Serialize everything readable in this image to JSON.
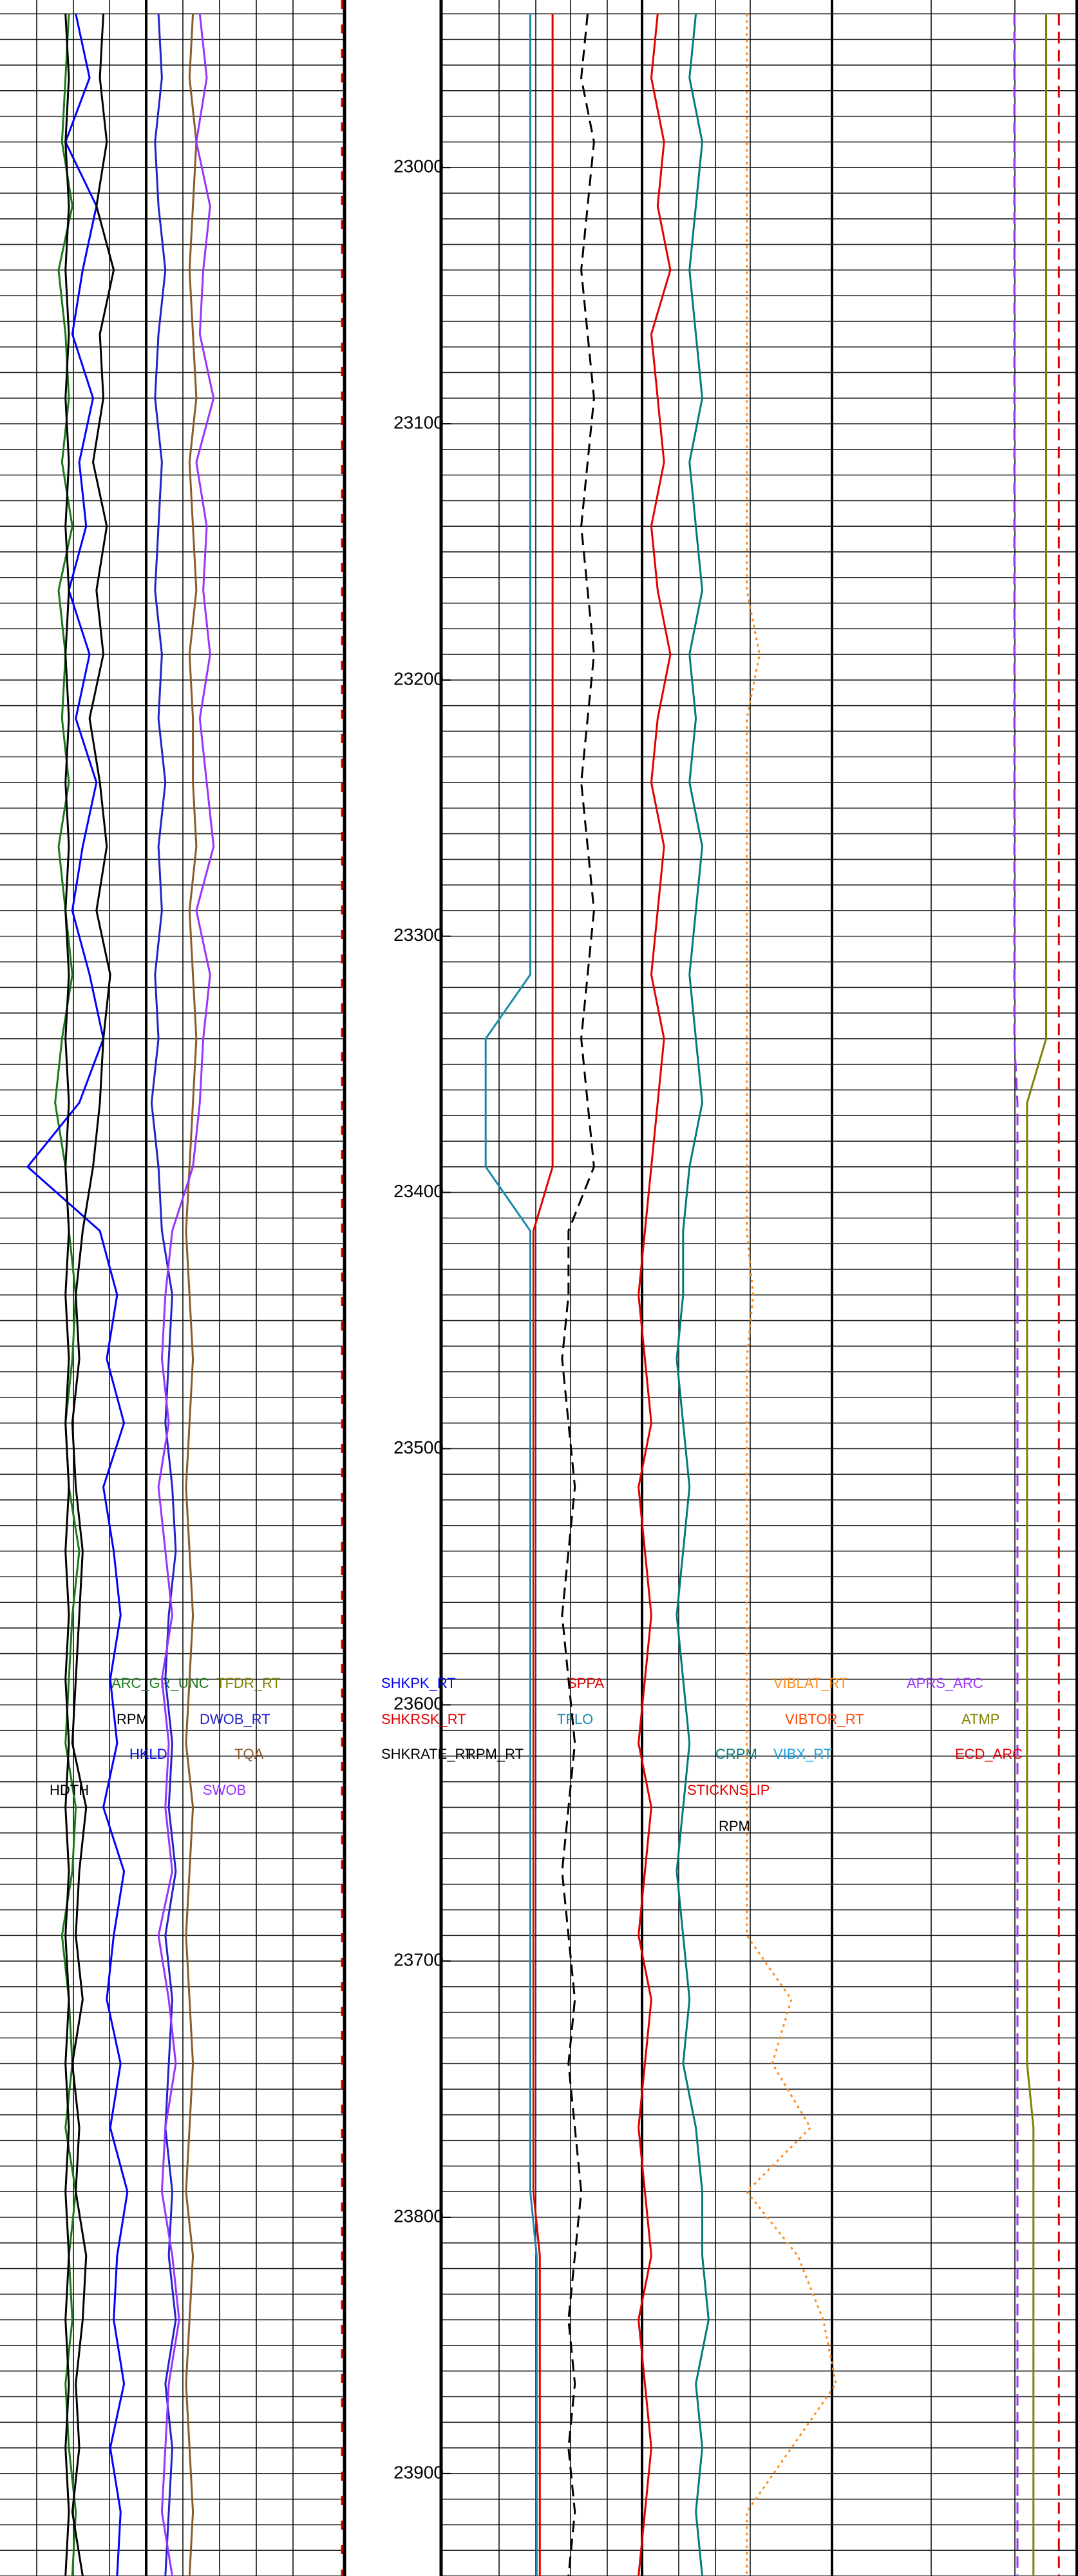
{
  "chart_data": {
    "type": "well-log",
    "ylim": [
      22934.6,
      23940
    ],
    "yticks": [
      23000,
      23100,
      23200,
      23300,
      23400,
      23500,
      23600,
      23700,
      23800,
      23900
    ],
    "minor_grid_step": 10,
    "x": [
      22940,
      22965,
      22990,
      23015,
      23040,
      23065,
      23090,
      23115,
      23140,
      23165,
      23190,
      23215,
      23240,
      23265,
      23290,
      23315,
      23340,
      23365,
      23390,
      23415,
      23440,
      23465,
      23490,
      23515,
      23540,
      23565,
      23590,
      23615,
      23640,
      23665,
      23690,
      23715,
      23740,
      23765,
      23790,
      23815,
      23840,
      23865,
      23890,
      23915,
      23940
    ],
    "tracks": [
      {
        "xlim": [
          0,
          100
        ],
        "series": [
          {
            "name": "ARC_GR_UNC",
            "color": "#1a7a1a",
            "values": [
              20,
              19,
              18,
              21,
              17,
              19,
              20,
              18,
              21,
              17,
              19,
              18,
              20,
              17,
              19,
              21,
              18,
              16,
              19,
              20,
              22,
              21,
              19,
              20,
              23,
              21,
              20,
              19,
              22,
              21,
              18,
              20,
              21,
              19,
              22,
              20,
              21,
              19,
              20,
              22,
              21
            ]
          },
          {
            "name": "HKLD",
            "color": "#0000ff",
            "values": [
              22,
              26,
              19,
              28,
              24,
              21,
              27,
              23,
              25,
              20,
              26,
              22,
              28,
              24,
              21,
              26,
              30,
              23,
              8,
              29,
              34,
              31,
              36,
              30,
              33,
              35,
              32,
              34,
              30,
              36,
              33,
              31,
              35,
              32,
              37,
              34,
              33,
              36,
              32,
              35,
              34
            ]
          },
          {
            "name": "RPM",
            "color": "#000000",
            "values": [
              30,
              29,
              31,
              28,
              33,
              29,
              30,
              27,
              31,
              28,
              30,
              26,
              29,
              31,
              28,
              32,
              30,
              29,
              27,
              24,
              22,
              23,
              21,
              22,
              24,
              23,
              22,
              21,
              25,
              23,
              22,
              24,
              21,
              23,
              22,
              25,
              24,
              22,
              23,
              21,
              24
            ]
          },
          {
            "name": "HDTH",
            "color": "#000000",
            "values": [
              19,
              20,
              19,
              20,
              19,
              20,
              19,
              20,
              19,
              20,
              19,
              20,
              19,
              20,
              19,
              20,
              19,
              20,
              19,
              20,
              19,
              20,
              19,
              20,
              19,
              20,
              19,
              20,
              19,
              20,
              19,
              20,
              19,
              20,
              19,
              20,
              19,
              20,
              19,
              20,
              19
            ]
          },
          {
            "name": "DWOB_RT",
            "color": "#2222cc",
            "values": [
              46,
              47,
              45,
              46,
              48,
              46,
              45,
              47,
              46,
              45,
              47,
              46,
              48,
              46,
              47,
              45,
              46,
              44,
              46,
              47,
              50,
              49,
              48,
              50,
              51,
              49,
              48,
              50,
              49,
              51,
              48,
              50,
              49,
              48,
              50,
              49,
              51,
              48,
              50,
              49,
              48
            ]
          },
          {
            "name": "TQA",
            "color": "#8b5a2b",
            "values": [
              56,
              55,
              57,
              56,
              55,
              56,
              57,
              55,
              56,
              57,
              55,
              56,
              56,
              57,
              55,
              56,
              57,
              56,
              55,
              54,
              55,
              56,
              55,
              54,
              55,
              56,
              55,
              54,
              56,
              55,
              54,
              55,
              56,
              55,
              54,
              56,
              55,
              54,
              55,
              56,
              55
            ]
          },
          {
            "name": "SWOB",
            "color": "#9933ff",
            "values": [
              58,
              60,
              57,
              61,
              59,
              58,
              62,
              57,
              60,
              59,
              61,
              58,
              60,
              62,
              57,
              61,
              59,
              58,
              56,
              50,
              48,
              47,
              49,
              46,
              48,
              50,
              47,
              49,
              48,
              50,
              46,
              49,
              51,
              48,
              47,
              50,
              52,
              49,
              48,
              47,
              50
            ]
          }
        ]
      },
      {
        "xlim": [
          0,
          100
        ],
        "series": [
          {
            "name": "TFLO",
            "color": "#1a8aaa",
            "values": [
              14,
              14,
              14,
              14,
              14,
              14,
              14,
              14,
              14,
              14,
              14,
              14,
              14,
              14,
              14,
              14,
              7,
              7,
              7,
              14,
              14,
              14,
              14,
              14,
              14,
              14,
              14,
              14,
              14,
              14,
              14,
              14,
              14,
              14,
              14,
              15,
              15,
              15,
              15,
              15,
              15
            ]
          },
          {
            "name": "SPPA",
            "color": "#e00000",
            "values": [
              17.5,
              17.5,
              17.5,
              17.5,
              17.5,
              17.5,
              17.5,
              17.5,
              17.5,
              17.5,
              17.5,
              17.5,
              17.5,
              17.5,
              17.5,
              17.5,
              17.5,
              17.5,
              17.5,
              14.5,
              14.5,
              14.5,
              14.5,
              14.5,
              14.5,
              14.5,
              14.5,
              14.5,
              14.5,
              14.5,
              14.5,
              14.5,
              14.5,
              14.5,
              14.5,
              15.5,
              15.5,
              15.5,
              15.5,
              15.5,
              15.5
            ]
          },
          {
            "name": "RPM_RT",
            "color": "#000000",
            "style": "dashed",
            "values": [
              23,
              22,
              24,
              23,
              22,
              23,
              24,
              23,
              22,
              23,
              24,
              23,
              22,
              23,
              24,
              23,
              22,
              23,
              24,
              20,
              20,
              19,
              20,
              21,
              20,
              19,
              20,
              21,
              20,
              19,
              20,
              21,
              20,
              21,
              22,
              21,
              20,
              21,
              20,
              21,
              20
            ]
          },
          {
            "name": "STICKNSLIP",
            "color": "#e00000",
            "values": [
              34,
              33,
              35,
              34,
              36,
              33,
              34,
              35,
              33,
              34,
              36,
              34,
              33,
              35,
              34,
              33,
              35,
              34,
              33,
              32,
              31,
              32,
              33,
              31,
              32,
              33,
              32,
              31,
              33,
              32,
              31,
              33,
              32,
              31,
              32,
              33,
              31,
              32,
              33,
              32,
              31
            ]
          },
          {
            "name": "CRPM",
            "color": "#007b7b",
            "values": [
              40,
              39,
              41,
              40,
              39,
              40,
              41,
              39,
              40,
              41,
              39,
              40,
              39,
              41,
              40,
              39,
              40,
              41,
              39,
              38,
              38,
              37,
              38,
              39,
              38,
              37,
              38,
              39,
              38,
              37,
              38,
              39,
              38,
              40,
              41,
              41,
              42,
              40,
              41,
              40,
              41
            ]
          },
          {
            "name": "VIBLAT_RT",
            "color": "#ff8c1a",
            "style": "dotted",
            "values": [
              48,
              48,
              48,
              48,
              48,
              48,
              48,
              48,
              48,
              48,
              50,
              48,
              48,
              48,
              48,
              48,
              48,
              48,
              48,
              48,
              49,
              48,
              48,
              48,
              48,
              48,
              48,
              48,
              48,
              48,
              48,
              55,
              52,
              58,
              48,
              56,
              60,
              62,
              55,
              48,
              48
            ]
          },
          {
            "name": "APRS_ARC",
            "color": "#9933ff",
            "style": "dashed",
            "values": [
              90,
              90,
              90,
              90,
              90,
              90,
              90,
              90,
              90,
              90,
              90,
              90,
              90,
              90,
              90,
              90,
              90,
              90.5,
              90.5,
              90.5,
              90.5,
              90.5,
              90.5,
              90.5,
              90.5,
              90.5,
              90.5,
              90.5,
              90.5,
              90.5,
              90.5,
              90.5,
              90.5,
              90.5,
              90.5,
              90.5,
              90.5,
              90.5,
              90.5,
              90.5,
              90.5
            ]
          },
          {
            "name": "ATMP",
            "color": "#808000",
            "values": [
              95,
              95,
              95,
              95,
              95,
              95,
              95,
              95,
              95,
              95,
              95,
              95,
              95,
              95,
              95,
              95,
              95,
              92,
              92,
              92,
              92,
              92,
              92,
              92,
              92,
              92,
              92,
              92,
              92,
              92,
              92,
              92,
              92,
              93,
              93,
              93,
              93,
              93,
              93,
              93,
              93
            ]
          },
          {
            "name": "ECD_ARC",
            "color": "#e00000",
            "style": "dashed",
            "values": [
              97,
              97,
              97,
              97,
              97,
              97,
              97,
              97,
              97,
              97,
              97,
              97,
              97,
              97,
              97,
              97,
              97,
              97,
              97,
              97,
              97,
              97,
              97,
              97,
              97,
              97,
              97,
              97,
              97,
              97,
              97,
              97,
              97,
              97,
              97,
              97,
              97,
              97,
              97,
              97,
              97
            ]
          }
        ]
      }
    ],
    "annotations": [
      {
        "text": "TFDR_RT",
        "color": "#808000"
      },
      {
        "text": "SHKPK_RT",
        "color": "#0000ff"
      },
      {
        "text": "SHKRSK_RT",
        "color": "#e00000"
      },
      {
        "text": "SHKRATE_RT",
        "color": "#000000"
      },
      {
        "text": "VIBX_RT",
        "color": "#1aa0e0"
      },
      {
        "text": "VIBTOR_RT",
        "color": "#ff4500"
      },
      {
        "text": "RPM",
        "color": "#000000"
      }
    ]
  }
}
